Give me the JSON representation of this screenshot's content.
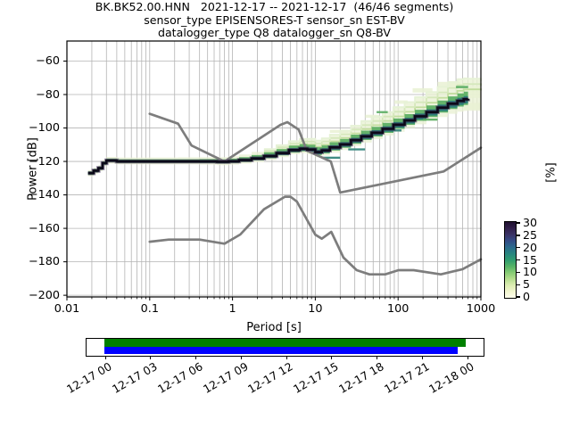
{
  "title": {
    "line1": "BK.BK52.00.HNN   2021-12-17 -- 2021-12-17  (46/46 segments)",
    "line2": "sensor_type EPISENSORES-T sensor_sn EST-BV",
    "line3": "datalogger_type Q8 datalogger_sn Q8-BV"
  },
  "axes": {
    "xlabel": "Period [s]",
    "ylabel": "Power [dB]",
    "cblabel": "[%]"
  },
  "chart_data": {
    "type": "line",
    "title": "BK.BK52.00.HNN 2021-12-17 -- 2021-12-17 (46/46 segments)",
    "xlabel": "Period [s]",
    "ylabel": "Power [dB]",
    "xscale": "log",
    "xlim": [
      0.01,
      1000
    ],
    "ylim": [
      -201,
      -48
    ],
    "grid": true,
    "x_ticks": [
      0.01,
      0.1,
      1,
      10,
      100,
      1000
    ],
    "x_tick_labels": [
      "0.01",
      "0.1",
      "1",
      "10",
      "100",
      "1000"
    ],
    "y_ticks": [
      -60,
      -80,
      -100,
      -120,
      -140,
      -160,
      -180,
      -200
    ],
    "y_tick_labels": [
      "−60",
      "−80",
      "−100",
      "−120",
      "−140",
      "−160",
      "−180",
      "−200"
    ],
    "colors": {
      "grid": "#b4b4b4",
      "noise_model": "#7d7d7d",
      "pale": "#e9f1d4",
      "green": "#57ab60",
      "teal": "#2b7f77",
      "core": "#0c0919",
      "core_halo": "#3a2a52"
    },
    "series": [
      {
        "name": "NLNM Peterson low noise model",
        "color": "#7d7d7d",
        "points": [
          [
            0.1,
            -168.0
          ],
          [
            0.17,
            -166.7
          ],
          [
            0.4,
            -166.7
          ],
          [
            0.8,
            -169.2
          ],
          [
            1.24,
            -163.7
          ],
          [
            2.4,
            -148.6
          ],
          [
            4.3,
            -141.1
          ],
          [
            5.0,
            -141.1
          ],
          [
            6.0,
            -144.0
          ],
          [
            10.0,
            -163.8
          ],
          [
            12.0,
            -166.2
          ],
          [
            15.6,
            -162.1
          ],
          [
            21.9,
            -177.5
          ],
          [
            31.6,
            -185.0
          ],
          [
            45.0,
            -187.5
          ],
          [
            70.0,
            -187.5
          ],
          [
            101.0,
            -185.0
          ],
          [
            154.0,
            -185.0
          ],
          [
            328.0,
            -187.5
          ],
          [
            600.0,
            -184.4
          ],
          [
            1000.0,
            -178.5
          ]
        ]
      },
      {
        "name": "NHNM Peterson high noise model",
        "color": "#7d7d7d",
        "points": [
          [
            0.1,
            -91.5
          ],
          [
            0.22,
            -97.4
          ],
          [
            0.32,
            -110.5
          ],
          [
            0.8,
            -120.0
          ],
          [
            3.8,
            -98.1
          ],
          [
            4.6,
            -96.5
          ],
          [
            6.3,
            -101.0
          ],
          [
            7.9,
            -113.5
          ],
          [
            15.4,
            -120.0
          ],
          [
            20.0,
            -138.6
          ],
          [
            354.8,
            -126.0
          ],
          [
            1000.0,
            -111.8
          ]
        ]
      },
      {
        "name": "PPSD mode (highest probability power)",
        "color": "#0c0919",
        "points": [
          [
            0.018,
            -127
          ],
          [
            0.03,
            -119.5
          ],
          [
            0.1,
            -120
          ],
          [
            0.8,
            -120
          ],
          [
            2.4,
            -116.8
          ],
          [
            6.5,
            -112.4
          ],
          [
            10,
            -114.4
          ],
          [
            20,
            -109.8
          ],
          [
            48,
            -102.8
          ],
          [
            120,
            -95.5
          ],
          [
            300,
            -87.8
          ],
          [
            700,
            -82.5
          ]
        ]
      }
    ],
    "distribution": {
      "note": "per period: mode dB, green spread above/below (dB), pale spread above/below (dB)",
      "core_period_max": 700,
      "points": [
        [
          0.018,
          -127,
          1,
          1,
          1.8,
          1.8
        ],
        [
          0.021,
          -125.5,
          1,
          1,
          1.8,
          1.8
        ],
        [
          0.024,
          -124,
          1,
          1,
          1.8,
          1.8
        ],
        [
          0.027,
          -121,
          1,
          1,
          2,
          1.8
        ],
        [
          0.03,
          -119.5,
          1.2,
          0.9,
          2.2,
          1.8
        ],
        [
          0.04,
          -120,
          1.3,
          0.9,
          2.4,
          1.8
        ],
        [
          0.07,
          -120,
          1.3,
          0.9,
          2.4,
          1.8
        ],
        [
          0.12,
          -120,
          1.3,
          0.9,
          2.4,
          1.8
        ],
        [
          0.22,
          -120,
          1.3,
          0.9,
          2.5,
          1.8
        ],
        [
          0.4,
          -120,
          1.4,
          1,
          2.6,
          1.9
        ],
        [
          0.65,
          -120.2,
          1.5,
          1,
          2.8,
          2
        ],
        [
          0.9,
          -119.9,
          1.6,
          1,
          3,
          2
        ],
        [
          1.2,
          -119.2,
          1.8,
          1.1,
          3.4,
          2.1
        ],
        [
          1.7,
          -118.2,
          2,
          1.2,
          3.9,
          2.2
        ],
        [
          2.4,
          -116.8,
          2.2,
          1.3,
          4.4,
          2.3
        ],
        [
          3.4,
          -115,
          2.4,
          1.4,
          5,
          2.4
        ],
        [
          4.8,
          -113.2,
          2.6,
          1.5,
          5.6,
          2.5
        ],
        [
          6.5,
          -112.4,
          2.7,
          1.6,
          6.2,
          2.6
        ],
        [
          8,
          -112.9,
          2.8,
          1.7,
          6.8,
          2.8
        ],
        [
          10,
          -114.4,
          2.9,
          1.8,
          7.2,
          3
        ],
        [
          12,
          -113.4,
          3,
          1.8,
          7.6,
          3.1
        ],
        [
          15,
          -111.6,
          3.1,
          1.9,
          8,
          3.2
        ],
        [
          20,
          -109.8,
          3.2,
          2,
          8.6,
          3.4
        ],
        [
          27,
          -107.3,
          3.3,
          2.1,
          9.1,
          3.5
        ],
        [
          36,
          -105,
          3.4,
          2.2,
          9.6,
          3.7
        ],
        [
          48,
          -102.8,
          3.5,
          2.3,
          10,
          3.8
        ],
        [
          65,
          -100.5,
          3.6,
          2.4,
          10.5,
          4
        ],
        [
          88,
          -98,
          3.7,
          2.5,
          11,
          4.2
        ],
        [
          120,
          -95.5,
          3.8,
          2.6,
          11.5,
          4.5
        ],
        [
          160,
          -93,
          3.9,
          2.7,
          12,
          4.8
        ],
        [
          220,
          -90.5,
          4,
          2.9,
          12.5,
          5.2
        ],
        [
          300,
          -87.8,
          4.2,
          3,
          13,
          5.6
        ],
        [
          400,
          -85.5,
          4.4,
          3.2,
          13.5,
          6
        ],
        [
          520,
          -83.8,
          4.5,
          3.4,
          13.5,
          6.5
        ],
        [
          620,
          -82.8,
          4.5,
          3.5,
          13,
          7
        ],
        [
          700,
          -82.5,
          4.4,
          3.5,
          12.5,
          7.2
        ],
        [
          1000,
          -82.5,
          0,
          0,
          11,
          7
        ]
      ],
      "streak_fracs": [
        0.45,
        0.7,
        0.95
      ],
      "streak_colors": [
        "#c2dd9e",
        "#d5e8bb",
        "#e6f2d6"
      ],
      "patches": [
        [
          15,
          25,
          -102,
          1.8,
          "pale"
        ],
        [
          40,
          60,
          -93,
          1.8,
          "pale"
        ],
        [
          90,
          130,
          -84.5,
          2,
          "pale"
        ],
        [
          150,
          260,
          -77.5,
          2.6,
          "pale"
        ],
        [
          300,
          560,
          -73.8,
          2.8,
          "pale"
        ],
        [
          560,
          1000,
          -76.5,
          3,
          "pale"
        ],
        [
          620,
          1000,
          -87,
          4,
          "pale"
        ],
        [
          700,
          1000,
          -80,
          4,
          "pale"
        ],
        [
          55,
          75,
          -90.5,
          1.2,
          "green"
        ],
        [
          500,
          700,
          -75.5,
          1.4,
          "green"
        ],
        [
          200,
          300,
          -95,
          1.2,
          "green"
        ],
        [
          12,
          20,
          -117.8,
          1.3,
          "teal"
        ],
        [
          25,
          40,
          -112.8,
          1.2,
          "teal"
        ],
        [
          80,
          110,
          -101.5,
          1.3,
          "teal"
        ]
      ]
    },
    "colorbar": {
      "label": "[%]",
      "vmin": 0,
      "vmax": 30,
      "ticks": [
        0,
        5,
        10,
        15,
        20,
        25,
        30
      ],
      "gradient_bottom_to_top": [
        "#fdfdec",
        "#f2f5cf",
        "#dcedb1",
        "#b4dd8e",
        "#86cb74",
        "#55b266",
        "#2f9c70",
        "#27857f",
        "#2b6a8c",
        "#334c86",
        "#3a3366",
        "#31204a",
        "#20102f"
      ]
    }
  },
  "timebar": {
    "tick_labels": [
      "12-17 00",
      "12-17 03",
      "12-17 06",
      "12-17 09",
      "12-17 12",
      "12-17 15",
      "12-17 18",
      "12-17 21",
      "12-18 00"
    ],
    "bars": [
      {
        "name": "timebar-green-coverage",
        "color": "#008000",
        "start": 0.0,
        "end": 0.997
      },
      {
        "name": "timebar-blue-coverage",
        "color": "#0000ff",
        "start": 0.0,
        "end": 0.9755
      }
    ]
  }
}
